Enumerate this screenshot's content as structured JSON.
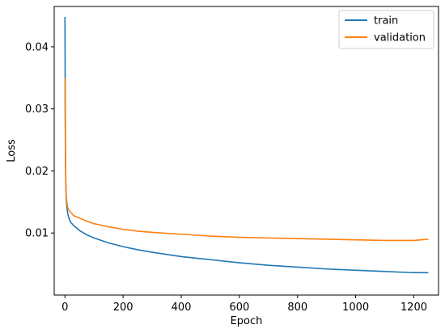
{
  "chart_data": {
    "type": "line",
    "title": "",
    "xlabel": "Epoch",
    "ylabel": "Loss",
    "xlim": [
      -37,
      1285
    ],
    "ylim": [
      0.0,
      0.0465
    ],
    "xticks": [
      0,
      200,
      400,
      600,
      800,
      1000,
      1200
    ],
    "xtick_labels": [
      "0",
      "200",
      "400",
      "600",
      "800",
      "1000",
      "1200"
    ],
    "yticks": [
      0.01,
      0.02,
      0.03,
      0.04
    ],
    "ytick_labels": [
      "0.01",
      "0.02",
      "0.03",
      "0.04"
    ],
    "grid": false,
    "legend_position": "top-right",
    "series": [
      {
        "name": "train",
        "color": "#1f77b4",
        "x": [
          0,
          1,
          2,
          3,
          4,
          5,
          7,
          10,
          15,
          20,
          30,
          50,
          75,
          100,
          150,
          200,
          250,
          300,
          400,
          500,
          600,
          700,
          800,
          900,
          1000,
          1100,
          1200,
          1250
        ],
        "y": [
          0.0448,
          0.03,
          0.022,
          0.018,
          0.016,
          0.015,
          0.014,
          0.013,
          0.0122,
          0.0117,
          0.0112,
          0.0104,
          0.0097,
          0.0092,
          0.0084,
          0.0078,
          0.0073,
          0.0069,
          0.0062,
          0.0057,
          0.0052,
          0.0048,
          0.0045,
          0.0042,
          0.004,
          0.0038,
          0.0036,
          0.0036
        ]
      },
      {
        "name": "validation",
        "color": "#ff7f0e",
        "x": [
          0,
          1,
          2,
          3,
          4,
          5,
          7,
          10,
          15,
          20,
          30,
          50,
          75,
          100,
          150,
          200,
          250,
          300,
          400,
          500,
          600,
          700,
          800,
          900,
          1000,
          1100,
          1200,
          1250
        ],
        "y": [
          0.035,
          0.026,
          0.021,
          0.018,
          0.0165,
          0.0155,
          0.0148,
          0.014,
          0.0136,
          0.0133,
          0.0128,
          0.0124,
          0.0119,
          0.0115,
          0.011,
          0.0106,
          0.0103,
          0.0101,
          0.0098,
          0.0095,
          0.0093,
          0.0092,
          0.0091,
          0.009,
          0.0089,
          0.0088,
          0.0088,
          0.009
        ]
      }
    ]
  }
}
